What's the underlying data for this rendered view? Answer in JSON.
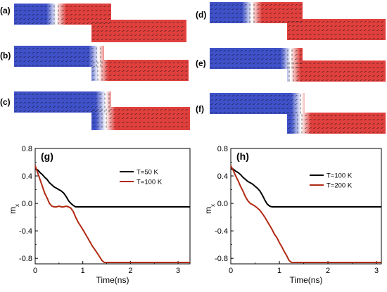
{
  "figure": {
    "domain_labels": [
      "(a)",
      "(b)",
      "(c)",
      "(d)",
      "(e)",
      "(f)"
    ],
    "colors": {
      "left_domain": "#3f51c9",
      "right_domain": "#e0403d",
      "wall": "#ffffff",
      "arrow": "#111111",
      "line_black": "#000000",
      "line_red": "#b02a12"
    }
  },
  "chart_data": [
    {
      "type": "line",
      "panel": "(g)",
      "xlabel": "Time(ns)",
      "ylabel": "m_x",
      "xlim": [
        0,
        3.25
      ],
      "ylim": [
        -0.88,
        0.8
      ],
      "xticks": [
        "0",
        "1",
        "2",
        "3"
      ],
      "yticks": [
        "0.8",
        "0.4",
        "0.0",
        "-0.4",
        "-0.8"
      ],
      "legend_position": "right",
      "series": [
        {
          "name": "T=50 K",
          "color": "#000000",
          "x": [
            0,
            0.05,
            0.1,
            0.15,
            0.2,
            0.25,
            0.3,
            0.35,
            0.4,
            0.45,
            0.5,
            0.55,
            0.6,
            0.65,
            0.7,
            0.75,
            0.8,
            0.85,
            0.9,
            1.0,
            1.1,
            1.2,
            1.5,
            2.0,
            2.5,
            3.25
          ],
          "y": [
            0.5,
            0.49,
            0.45,
            0.42,
            0.38,
            0.35,
            0.3,
            0.27,
            0.24,
            0.22,
            0.2,
            0.18,
            0.15,
            0.1,
            0.04,
            0.0,
            -0.03,
            -0.05,
            -0.05,
            -0.05,
            -0.05,
            -0.05,
            -0.05,
            -0.05,
            -0.05,
            -0.05
          ]
        },
        {
          "name": "T=100 K",
          "color": "#b02a12",
          "x": [
            0,
            0.05,
            0.1,
            0.15,
            0.2,
            0.25,
            0.3,
            0.35,
            0.4,
            0.45,
            0.5,
            0.55,
            0.6,
            0.65,
            0.7,
            0.75,
            0.8,
            0.85,
            0.9,
            1.0,
            1.1,
            1.2,
            1.3,
            1.4,
            1.45,
            1.5,
            2.0,
            2.5,
            3.25
          ],
          "y": [
            0.55,
            0.45,
            0.35,
            0.25,
            0.15,
            0.08,
            0.0,
            -0.04,
            -0.05,
            -0.05,
            -0.04,
            -0.05,
            -0.05,
            -0.04,
            -0.05,
            -0.07,
            -0.12,
            -0.2,
            -0.27,
            -0.38,
            -0.5,
            -0.62,
            -0.72,
            -0.83,
            -0.86,
            -0.86,
            -0.86,
            -0.86,
            -0.86
          ]
        }
      ]
    },
    {
      "type": "line",
      "panel": "(h)",
      "xlabel": "Time(ns)",
      "ylabel": "m_x",
      "xlim": [
        0,
        3.1
      ],
      "ylim": [
        -0.88,
        0.8
      ],
      "xticks": [
        "0",
        "1",
        "2",
        "3"
      ],
      "yticks": [
        "0.8",
        "0.4",
        "0.0",
        "-0.4",
        "-0.8"
      ],
      "legend_position": "right",
      "series": [
        {
          "name": "T=100 K",
          "color": "#000000",
          "x": [
            0,
            0.05,
            0.1,
            0.15,
            0.2,
            0.25,
            0.3,
            0.35,
            0.4,
            0.45,
            0.5,
            0.55,
            0.6,
            0.65,
            0.7,
            0.75,
            0.8,
            0.85,
            0.9,
            1.0,
            1.1,
            1.5,
            2.0,
            2.5,
            3.1
          ],
          "y": [
            0.5,
            0.5,
            0.47,
            0.45,
            0.42,
            0.38,
            0.35,
            0.32,
            0.3,
            0.28,
            0.25,
            0.22,
            0.18,
            0.12,
            0.05,
            -0.01,
            -0.04,
            -0.05,
            -0.05,
            -0.05,
            -0.05,
            -0.05,
            -0.05,
            -0.05,
            -0.05
          ]
        },
        {
          "name": "T=200 K",
          "color": "#b02a12",
          "x": [
            0,
            0.05,
            0.1,
            0.15,
            0.2,
            0.25,
            0.3,
            0.35,
            0.4,
            0.45,
            0.5,
            0.55,
            0.6,
            0.65,
            0.7,
            0.75,
            0.8,
            0.85,
            0.9,
            0.95,
            1.0,
            1.05,
            1.1,
            1.15,
            1.2,
            1.25,
            1.5,
            2.0,
            2.5,
            3.1
          ],
          "y": [
            0.55,
            0.48,
            0.4,
            0.33,
            0.25,
            0.18,
            0.1,
            0.04,
            0.0,
            -0.02,
            -0.04,
            -0.07,
            -0.1,
            -0.15,
            -0.2,
            -0.26,
            -0.32,
            -0.38,
            -0.45,
            -0.5,
            -0.57,
            -0.63,
            -0.7,
            -0.76,
            -0.83,
            -0.86,
            -0.86,
            -0.86,
            -0.86,
            -0.86
          ]
        }
      ]
    }
  ]
}
